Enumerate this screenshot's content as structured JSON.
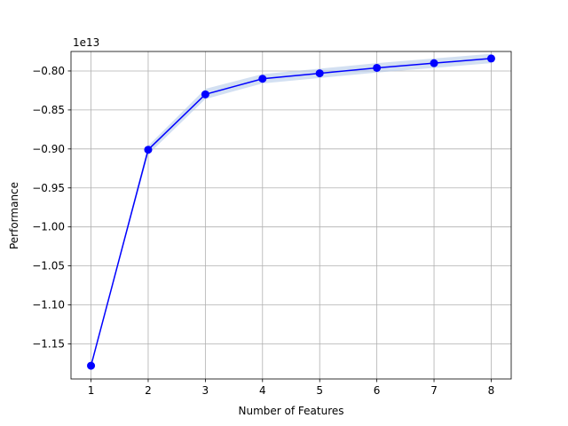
{
  "chart_data": {
    "type": "line",
    "title": "",
    "xlabel": "Number of Features",
    "ylabel": "Performance",
    "offset_label": "1e13",
    "x": [
      1,
      2,
      3,
      4,
      5,
      6,
      7,
      8
    ],
    "xlim": [
      0.65,
      8.35
    ],
    "ylim": [
      -1.195,
      -0.775
    ],
    "y_scale_factor": 10000000000000.0,
    "x_ticks": [
      "1",
      "2",
      "3",
      "4",
      "5",
      "6",
      "7",
      "8"
    ],
    "y_ticks": [
      {
        "value": -1.15,
        "label": "−1.15"
      },
      {
        "value": -1.1,
        "label": "−1.10"
      },
      {
        "value": -1.05,
        "label": "−1.05"
      },
      {
        "value": -1.0,
        "label": "−1.00"
      },
      {
        "value": -0.95,
        "label": "−0.95"
      },
      {
        "value": -0.9,
        "label": "−0.90"
      },
      {
        "value": -0.85,
        "label": "−0.85"
      },
      {
        "value": -0.8,
        "label": "−0.80"
      }
    ],
    "grid": true,
    "series": [
      {
        "values": [
          -1.178,
          -0.901,
          -0.83,
          -0.81,
          -0.803,
          -0.796,
          -0.79,
          -0.784
        ],
        "band_low": [
          -1.178,
          -0.907,
          -0.836,
          -0.816,
          -0.809,
          -0.802,
          -0.796,
          -0.79
        ],
        "band_high": [
          -1.178,
          -0.896,
          -0.823,
          -0.804,
          -0.797,
          -0.79,
          -0.784,
          -0.778
        ],
        "color": "#0000ff",
        "band_color": "#aec7e8"
      }
    ]
  }
}
